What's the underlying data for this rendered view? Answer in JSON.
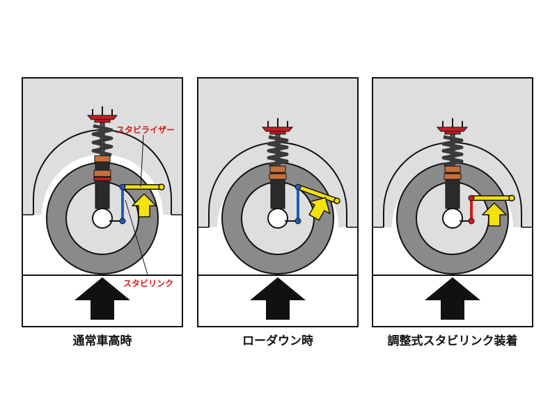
{
  "panels": [
    {
      "id": "normal",
      "caption": "通常車高時",
      "link_color": "#1f5cb8"
    },
    {
      "id": "lowered",
      "caption": "ローダウン時",
      "link_color": "#1f5cb8"
    },
    {
      "id": "adjustable",
      "caption": "調整式スタビリンク装着",
      "link_color": "#d21a1a"
    }
  ],
  "callouts": {
    "stabilizer": "スタビライザー",
    "stabilink": "スタビリンク"
  },
  "colors": {
    "body": "#dedede",
    "tire": "#8a8a8a",
    "coil": "#3a3a3a",
    "shock": "#2a2a2a",
    "mount": "#c41e24",
    "collar": "#c8703a",
    "stabilizer": "#f5e10c",
    "arrow_up": "#f5e10c",
    "push_arrow": "#111111",
    "callout_text": "#d21a1a"
  },
  "icons": {
    "push_arrow": "arrow-up-icon",
    "stabilizer_arrow": "arrow-up-icon"
  }
}
